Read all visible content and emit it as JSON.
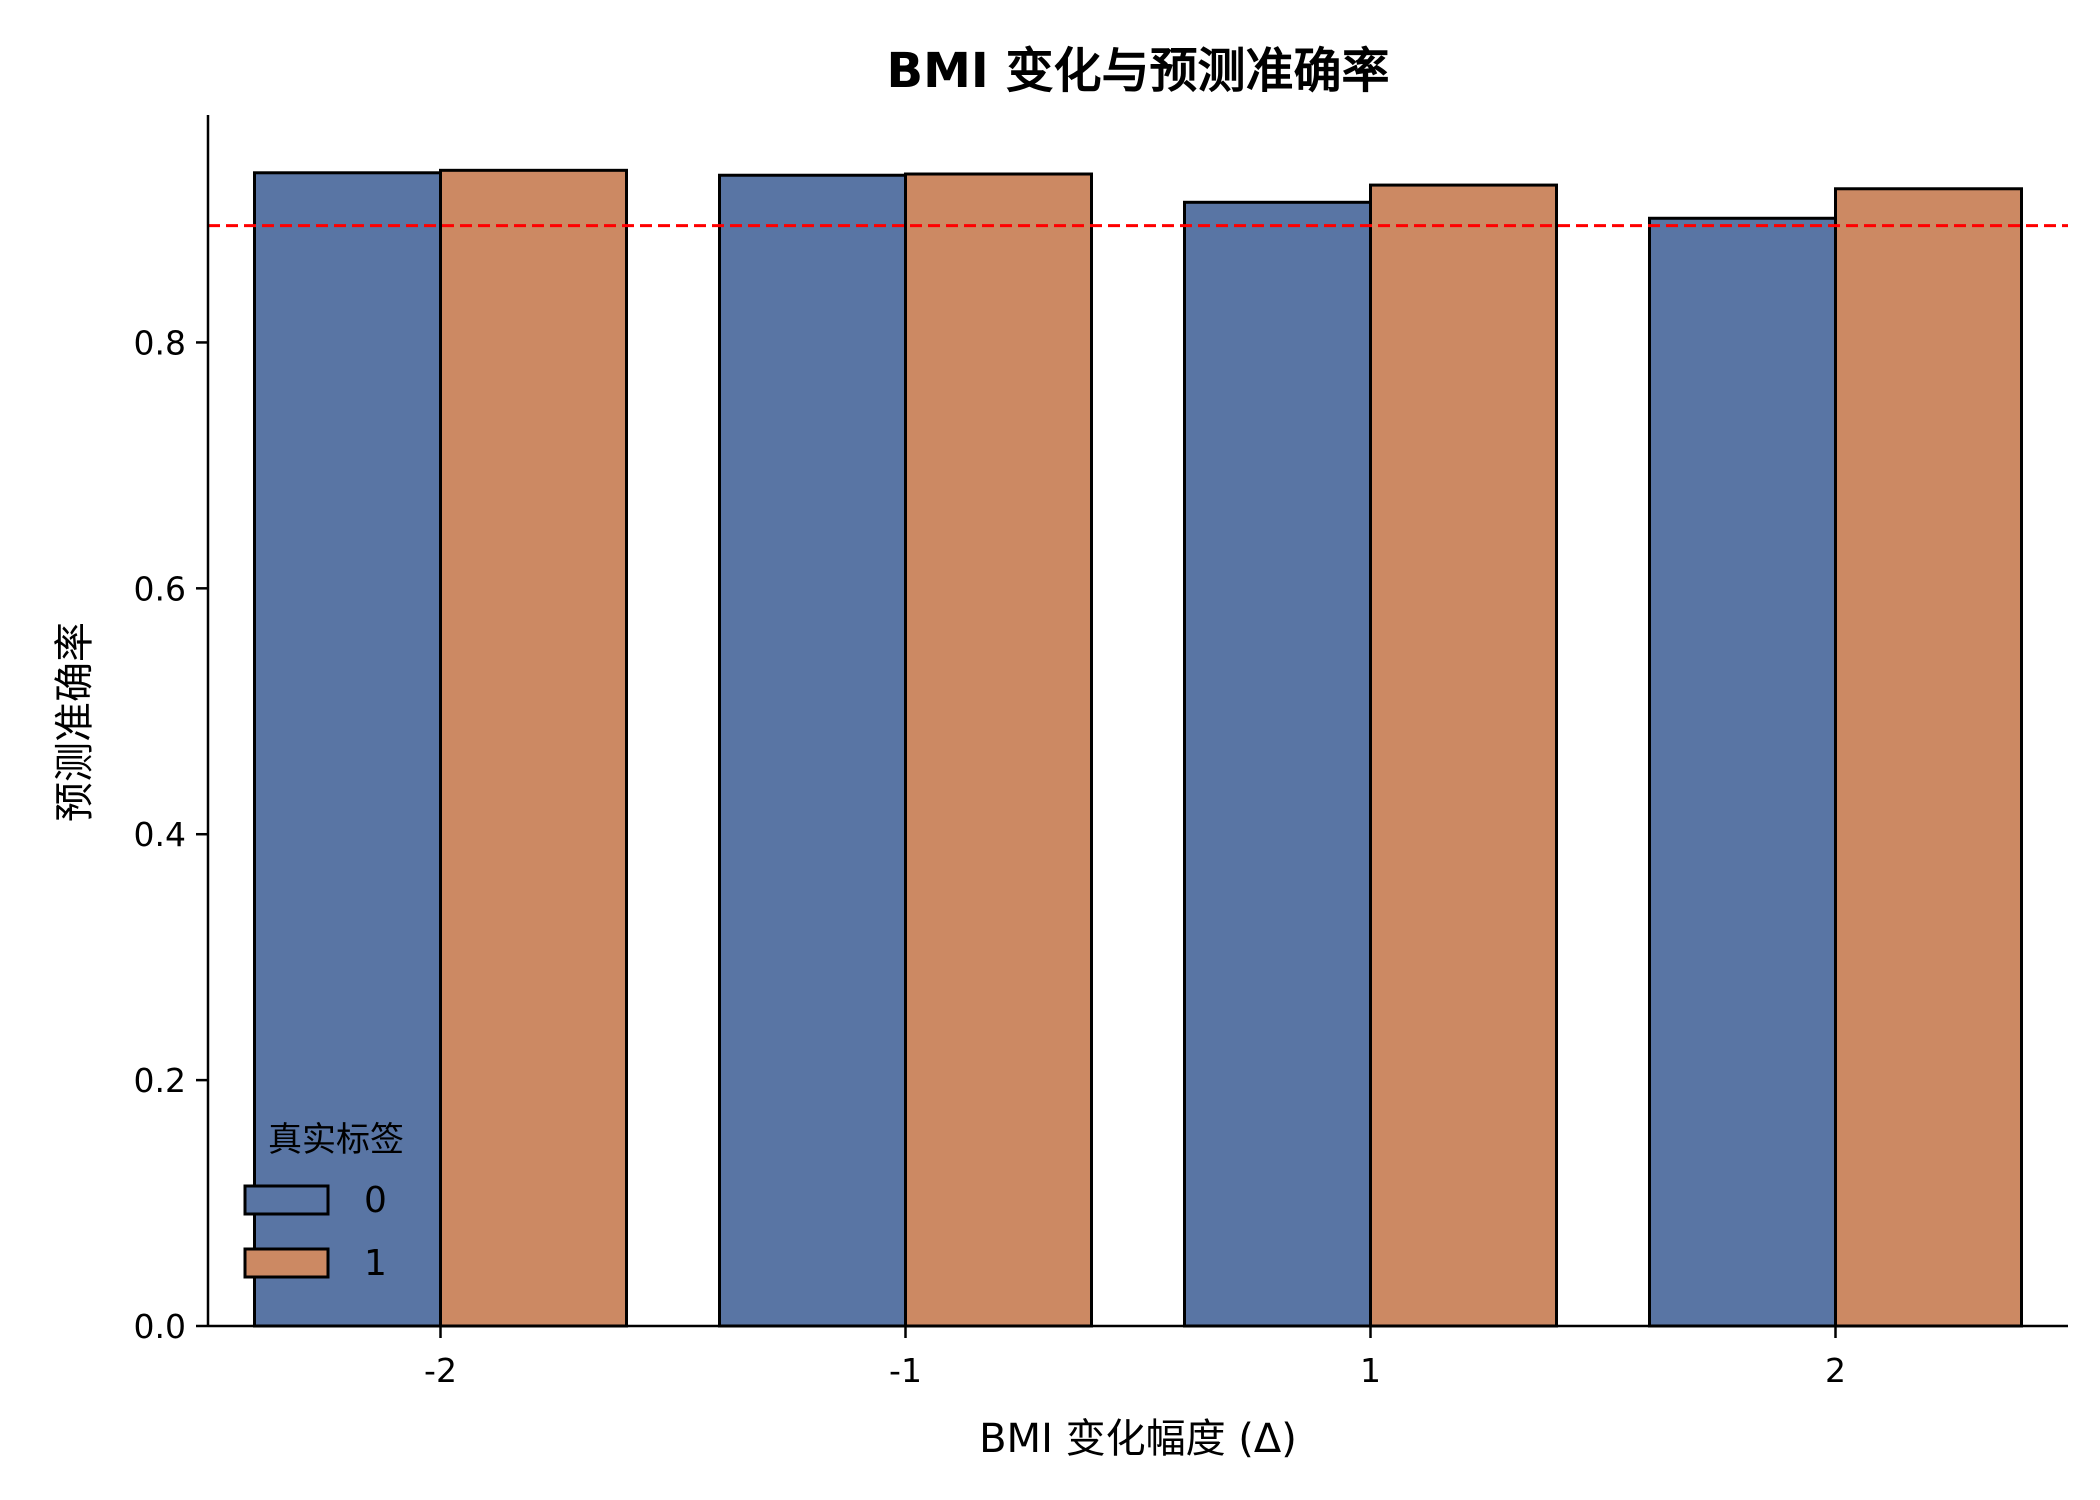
{
  "chart_data": {
    "type": "bar",
    "title": "BMI 变化与预测准确率",
    "xlabel": "BMI 变化幅度 (Δ)",
    "ylabel": "预测准确率",
    "categories": [
      "-2",
      "-1",
      "1",
      "2"
    ],
    "series": [
      {
        "name": "0",
        "values": [
          0.938,
          0.936,
          0.914,
          0.901
        ],
        "color": "#5975a4"
      },
      {
        "name": "1",
        "values": [
          0.94,
          0.937,
          0.928,
          0.925
        ],
        "color": "#cc8963"
      }
    ],
    "reference_line": {
      "value": 0.895,
      "color": "#ff0000",
      "style": "dashed"
    },
    "ylim": [
      0,
      0.985
    ],
    "yticks": [
      "0.0",
      "0.2",
      "0.4",
      "0.6",
      "0.8"
    ],
    "ytick_values": [
      0.0,
      0.2,
      0.4,
      0.6,
      0.8
    ],
    "legend": {
      "title": "真实标签",
      "position": "lower-left"
    },
    "grid": false
  }
}
